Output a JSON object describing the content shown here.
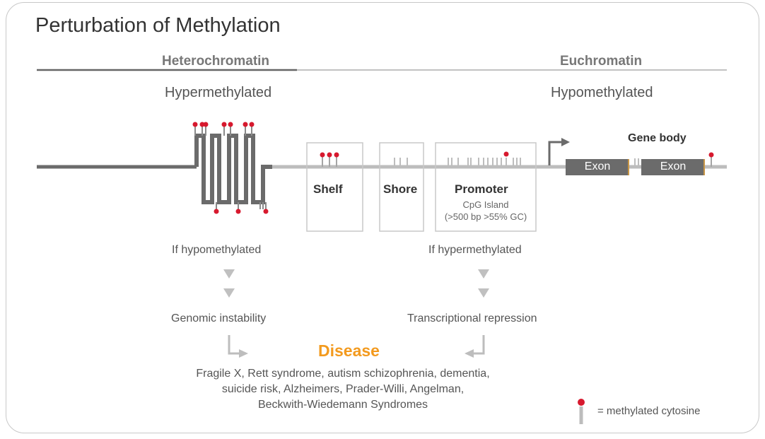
{
  "title": "Perturbation of Methylation",
  "headers": {
    "left": "Heterochromatin",
    "right": "Euchromatin"
  },
  "states": {
    "left": "Hypermethylated",
    "right": "Hypomethylated"
  },
  "regions": {
    "shelf": "Shelf",
    "shore": "Shore",
    "promoter": "Promoter",
    "promoter_sub1": "CpG Island",
    "promoter_sub2": "(>500 bp >55% GC)"
  },
  "gene": {
    "body_label": "Gene body",
    "exon1": "Exon",
    "exon2": "Exon"
  },
  "flow": {
    "left_condition": "If hypomethylated",
    "left_outcome": "Genomic instability",
    "right_condition": "If hypermethylated",
    "right_outcome": "Transcriptional repression",
    "result": "Disease"
  },
  "diseases": [
    "Fragile X, Rett syndrome, autism schizophrenia, dementia,",
    "suicide risk, Alzheimers, Prader-Willi, Angelman,",
    "Beckwith-Wiedemann Syndromes"
  ],
  "legend": {
    "text": "= methylated cytosine"
  },
  "colors": {
    "methyl_red": "#d7192e",
    "disease_orange": "#f39a1e",
    "chromatin_dark": "#6b6b6b",
    "chromatin_light": "#bdbdbd"
  }
}
